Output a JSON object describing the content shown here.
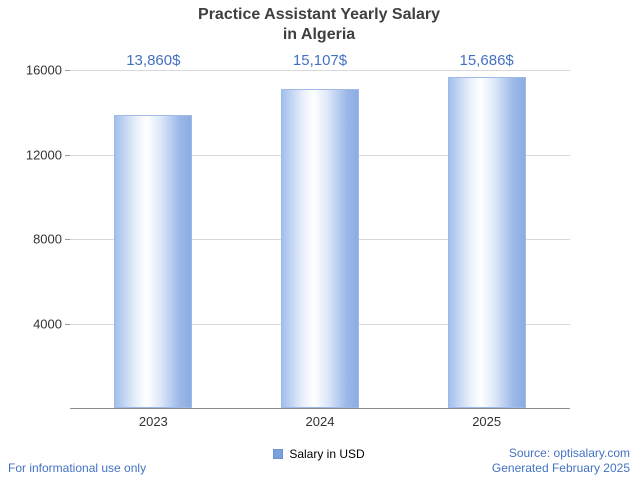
{
  "title": {
    "line1": "Practice Assistant Yearly Salary",
    "line2": "in Algeria"
  },
  "chart_data": {
    "type": "bar",
    "title": "Practice Assistant Yearly Salary in Algeria",
    "categories": [
      "2023",
      "2024",
      "2025"
    ],
    "values": [
      13860,
      15107,
      15686
    ],
    "value_labels": [
      "13,860$",
      "15,107$",
      "15,686$"
    ],
    "xlabel": "",
    "ylabel": "",
    "ylim": [
      0,
      16000
    ],
    "yticks": [
      4000,
      8000,
      12000,
      16000
    ],
    "grid": true,
    "legend_position": "bottom",
    "legend": [
      {
        "label": "Salary in USD",
        "color": "#7ca2dd"
      }
    ],
    "bar_edge_color": "#8bade2",
    "bar_center_color": "#ffffff"
  },
  "footer": {
    "left": "For informational use only",
    "source": "Source: optisalary.com",
    "generated": "Generated February 2025"
  },
  "colors": {
    "value_label": "#4472c4",
    "footer_text": "#4472c4",
    "gridline": "#d9d9d9",
    "axis": "#8c8c8c",
    "title_text": "#3f3f3f"
  }
}
